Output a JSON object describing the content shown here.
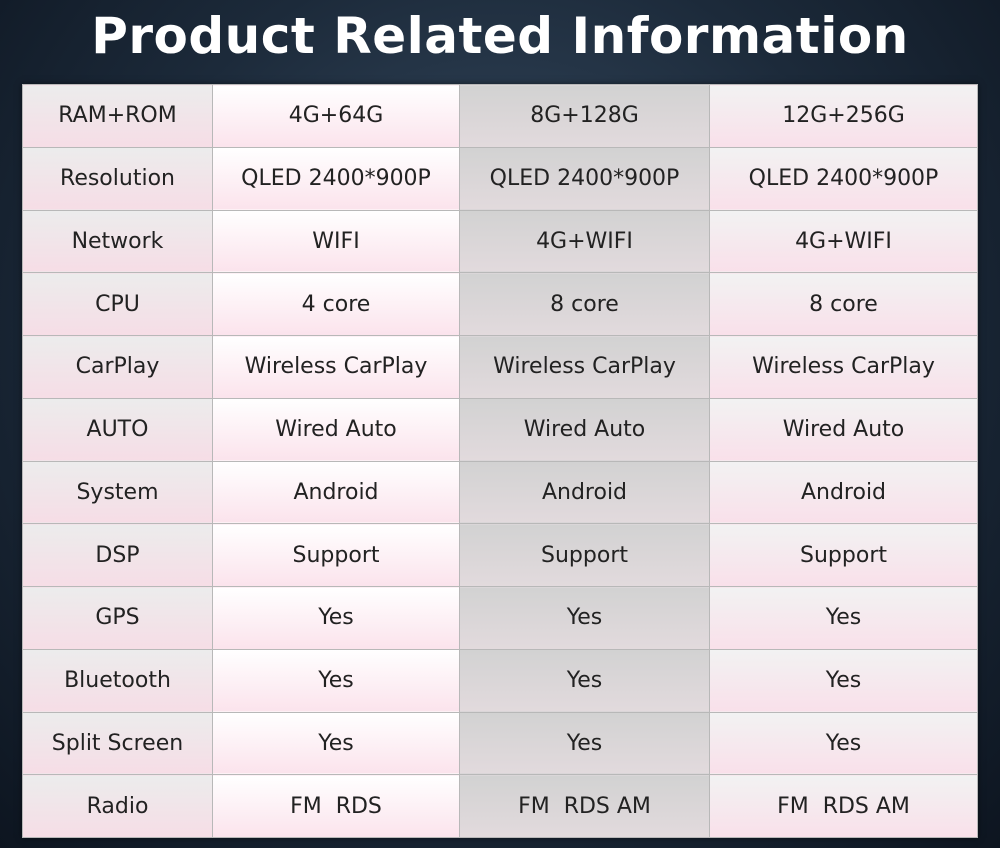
{
  "header": {
    "title": "Product Related Information"
  },
  "table": {
    "rows": [
      [
        "RAM+ROM",
        "4G+64G",
        "8G+128G",
        "12G+256G"
      ],
      [
        "Resolution",
        "QLED 2400*900P",
        "QLED 2400*900P",
        "QLED 2400*900P"
      ],
      [
        "Network",
        "WIFI",
        "4G+WIFI",
        "4G+WIFI"
      ],
      [
        "CPU",
        "4 core",
        "8 core",
        "8 core"
      ],
      [
        "CarPlay",
        "Wireless CarPlay",
        "Wireless CarPlay",
        "Wireless CarPlay"
      ],
      [
        "AUTO",
        "Wired Auto",
        "Wired Auto",
        "Wired Auto"
      ],
      [
        "System",
        "Android",
        "Android",
        "Android"
      ],
      [
        "DSP",
        "Support",
        "Support",
        "Support"
      ],
      [
        "GPS",
        "Yes",
        "Yes",
        "Yes"
      ],
      [
        "Bluetooth",
        "Yes",
        "Yes",
        "Yes"
      ],
      [
        "Split Screen",
        "Yes",
        "Yes",
        "Yes"
      ],
      [
        "Radio",
        "FM  RDS",
        "FM  RDS AM",
        "FM  RDS AM"
      ]
    ]
  }
}
